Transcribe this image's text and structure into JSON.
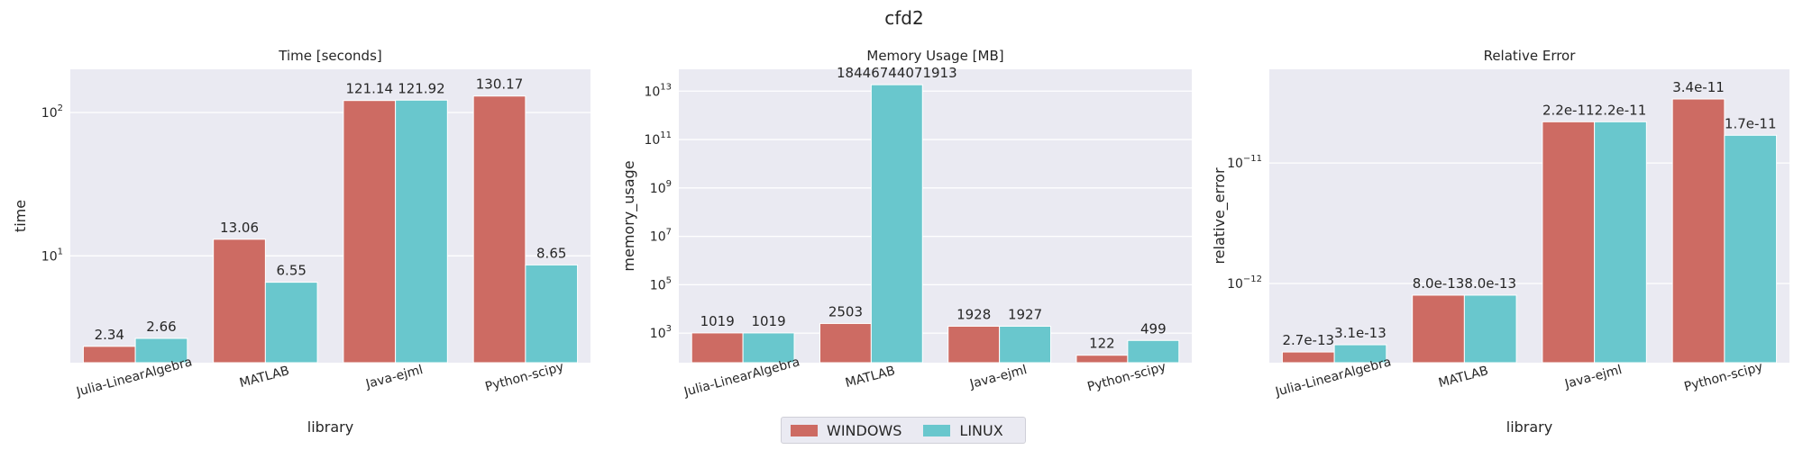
{
  "suptitle": "cfd2",
  "colors": {
    "WINDOWS": "#cd6b63",
    "LINUX": "#69c7cd",
    "panel_bg": "#eaeaf2",
    "grid": "#ffffff",
    "text": "#262626"
  },
  "legend": {
    "items": [
      {
        "label": "WINDOWS",
        "color": "#cd6b63"
      },
      {
        "label": "LINUX",
        "color": "#69c7cd"
      }
    ],
    "placement": "lower-center"
  },
  "chart_data": [
    {
      "type": "bar",
      "title": "Time [seconds]",
      "xlabel": "library",
      "ylabel": "time",
      "yscale": "log",
      "ylim": [
        1.8,
        200
      ],
      "yticks": [
        {
          "value": 10,
          "base": "10",
          "exp": "1"
        },
        {
          "value": 100,
          "base": "10",
          "exp": "2"
        }
      ],
      "categories": [
        "Julia-LinearAlgebra",
        "MATLAB",
        "Java-ejml",
        "Python-scipy"
      ],
      "series": [
        {
          "name": "WINDOWS",
          "values": [
            2.34,
            13.06,
            121.14,
            130.17
          ],
          "labels": [
            "2.34",
            "13.06",
            "121.14",
            "130.17"
          ]
        },
        {
          "name": "LINUX",
          "values": [
            2.66,
            6.55,
            121.92,
            8.65
          ],
          "labels": [
            "2.66",
            "6.55",
            "121.92",
            "8.65"
          ]
        }
      ]
    },
    {
      "type": "bar",
      "title": "Memory Usage [MB]",
      "xlabel": "library",
      "ylabel": "memory_usage",
      "yscale": "log",
      "ylim": [
        60,
        80000000000000
      ],
      "yticks": [
        {
          "value": 1000,
          "base": "10",
          "exp": "3"
        },
        {
          "value": 100000,
          "base": "10",
          "exp": "5"
        },
        {
          "value": 10000000,
          "base": "10",
          "exp": "7"
        },
        {
          "value": 1000000000,
          "base": "10",
          "exp": "9"
        },
        {
          "value": 100000000000,
          "base": "10",
          "exp": "11"
        },
        {
          "value": 10000000000000,
          "base": "10",
          "exp": "13"
        }
      ],
      "categories": [
        "Julia-LinearAlgebra",
        "MATLAB",
        "Java-ejml",
        "Python-scipy"
      ],
      "series": [
        {
          "name": "WINDOWS",
          "values": [
            1019,
            2503,
            1928,
            122
          ],
          "labels": [
            "1019",
            "2503",
            "1928",
            "122"
          ]
        },
        {
          "name": "LINUX",
          "values": [
            1019,
            18446744071913,
            1927,
            499
          ],
          "labels": [
            "1019",
            "18446744071913",
            "1927",
            "499"
          ]
        }
      ]
    },
    {
      "type": "bar",
      "title": "Relative Error",
      "xlabel": "library",
      "ylabel": "relative_error",
      "yscale": "log",
      "ylim": [
        2.2e-13,
        6e-11
      ],
      "yticks": [
        {
          "value": 1e-12,
          "base": "10",
          "exp": "−12"
        },
        {
          "value": 1e-11,
          "base": "10",
          "exp": "−11"
        }
      ],
      "categories": [
        "Julia-LinearAlgebra",
        "MATLAB",
        "Java-ejml",
        "Python-scipy"
      ],
      "series": [
        {
          "name": "WINDOWS",
          "values": [
            2.7e-13,
            8e-13,
            2.2e-11,
            3.4e-11
          ],
          "labels": [
            "2.7e-13",
            "8.0e-13",
            "2.2e-11",
            "3.4e-11"
          ]
        },
        {
          "name": "LINUX",
          "values": [
            3.1e-13,
            8e-13,
            2.2e-11,
            1.7e-11
          ],
          "labels": [
            "3.1e-13",
            "8.0e-13",
            "2.2e-11",
            "1.7e-11"
          ]
        }
      ]
    }
  ]
}
